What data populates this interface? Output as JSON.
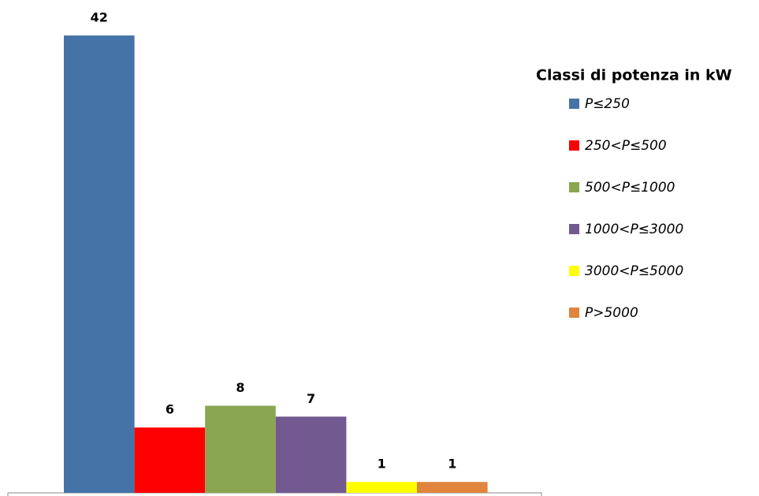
{
  "chart_data": {
    "type": "bar",
    "legend_title": "Classi di potenza in kW",
    "legend": "right",
    "series": [
      {
        "name": "P≤250",
        "color": "#4573a7",
        "values": [
          42
        ]
      },
      {
        "name": "250<P≤500",
        "color": "#ff0000",
        "values": [
          6
        ]
      },
      {
        "name": "500<P≤1000",
        "color": "#8aa650",
        "values": [
          8
        ]
      },
      {
        "name": "1000<P≤3000",
        "color": "#725990",
        "values": [
          7
        ]
      },
      {
        "name": "3000<P≤5000",
        "color": "#ffff00",
        "values": [
          1
        ]
      },
      {
        "name": "P>5000",
        "color": "#e0843e",
        "values": [
          1
        ]
      }
    ]
  }
}
